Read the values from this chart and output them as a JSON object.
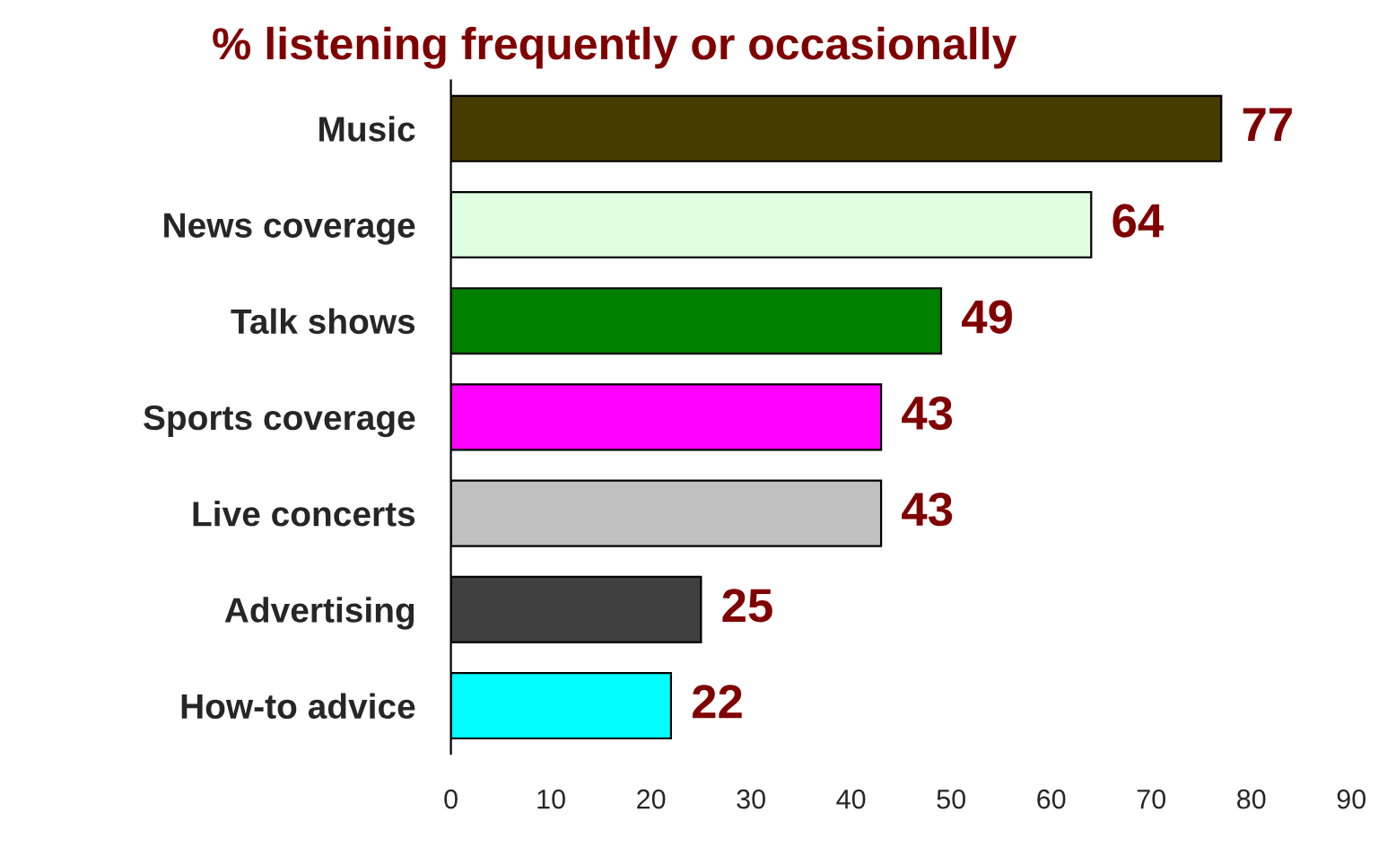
{
  "chart_data": {
    "type": "bar",
    "orientation": "horizontal",
    "title": "% listening frequently or occasionally",
    "categories": [
      "Music",
      "News coverage",
      "Talk shows",
      "Sports coverage",
      "Live concerts",
      "Advertising",
      "How-to advice"
    ],
    "values": [
      77,
      64,
      49,
      43,
      43,
      25,
      22
    ],
    "colors": [
      "#473c00",
      "#e0ffe0",
      "#008000",
      "#ff00ff",
      "#c0c0c0",
      "#404040",
      "#00ffff"
    ],
    "xlim": [
      0,
      90
    ],
    "xticks": [
      0,
      10,
      20,
      30,
      40,
      50,
      60,
      70,
      80,
      90
    ],
    "data_labels": true,
    "grid": false,
    "legend": false
  }
}
